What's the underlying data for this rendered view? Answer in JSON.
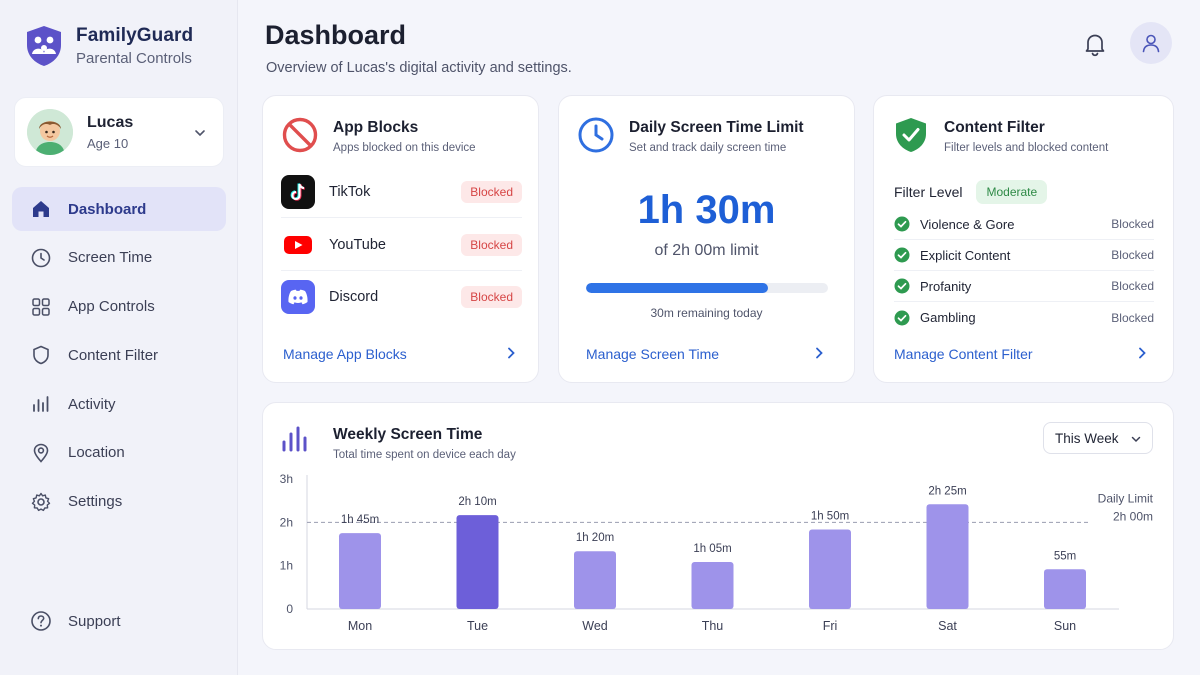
{
  "brand": {
    "name": "FamilyGuard",
    "subtitle": "Parental Controls"
  },
  "profile": {
    "name": "Lucas",
    "age": "Age 10"
  },
  "nav": [
    {
      "label": "Dashboard",
      "icon": "home-icon",
      "active": true
    },
    {
      "label": "Screen Time",
      "icon": "clock-icon",
      "active": false
    },
    {
      "label": "App Controls",
      "icon": "grid-icon",
      "active": false
    },
    {
      "label": "Content Filter",
      "icon": "shield-icon",
      "active": false
    },
    {
      "label": "Activity",
      "icon": "bar-chart-icon",
      "active": false
    },
    {
      "label": "Location",
      "icon": "location-pin-icon",
      "active": false
    },
    {
      "label": "Settings",
      "icon": "gear-icon",
      "active": false
    }
  ],
  "support": {
    "label": "Support",
    "icon": "help-icon"
  },
  "header": {
    "title": "Dashboard",
    "subtitle": "Overview of Lucas's digital activity and settings."
  },
  "app_blocks": {
    "title": "App Blocks",
    "subtitle": "Apps blocked on this device",
    "apps": [
      {
        "name": "TikTok",
        "status": "Blocked",
        "icon": "tiktok-icon"
      },
      {
        "name": "YouTube",
        "status": "Blocked",
        "icon": "youtube-icon"
      },
      {
        "name": "Discord",
        "status": "Blocked",
        "icon": "discord-icon"
      }
    ],
    "link": "Manage App Blocks"
  },
  "screen_time": {
    "title": "Daily Screen Time Limit",
    "subtitle": "Set and track daily screen time",
    "used": "1h 30m",
    "limit_text": "of 2h 00m limit",
    "progress_fraction": 0.75,
    "remaining": "30m remaining today",
    "link": "Manage Screen Time"
  },
  "content_filter": {
    "title": "Content Filter",
    "subtitle": "Filter levels and blocked content",
    "level_label": "Filter Level",
    "level_value": "Moderate",
    "items": [
      {
        "name": "Violence & Gore",
        "status": "Blocked"
      },
      {
        "name": "Explicit Content",
        "status": "Blocked"
      },
      {
        "name": "Profanity",
        "status": "Blocked"
      },
      {
        "name": "Gambling",
        "status": "Blocked"
      }
    ],
    "link": "Manage Content Filter"
  },
  "weekly": {
    "title": "Weekly Screen Time",
    "subtitle": "Total time spent on device each day",
    "range_select": "This Week"
  },
  "colors": {
    "accent": "#2b5fce",
    "bar": "#9e93ea",
    "bar_highlight": "#6d5fd9",
    "blocked_text": "#d64545",
    "ok_green": "#2e8a46"
  },
  "chart_data": {
    "type": "bar",
    "categories": [
      "Mon",
      "Tue",
      "Wed",
      "Thu",
      "Fri",
      "Sat",
      "Sun"
    ],
    "values": [
      1.75,
      2.1667,
      1.3333,
      1.0833,
      1.8333,
      2.4167,
      0.9167
    ],
    "value_labels": [
      "1h 45m",
      "2h 10m",
      "1h 20m",
      "1h 05m",
      "1h 50m",
      "2h 25m",
      "55m"
    ],
    "highlight_index": 1,
    "y_ticks": [
      0,
      1,
      2,
      3
    ],
    "y_tick_labels": [
      "0",
      "1h",
      "2h",
      "3h"
    ],
    "ylim": [
      0,
      3
    ],
    "limit_line": {
      "value": 2,
      "label_line1": "Daily Limit",
      "label_line2": "2h 00m"
    },
    "xlabel": "",
    "ylabel": "",
    "grid": false
  }
}
